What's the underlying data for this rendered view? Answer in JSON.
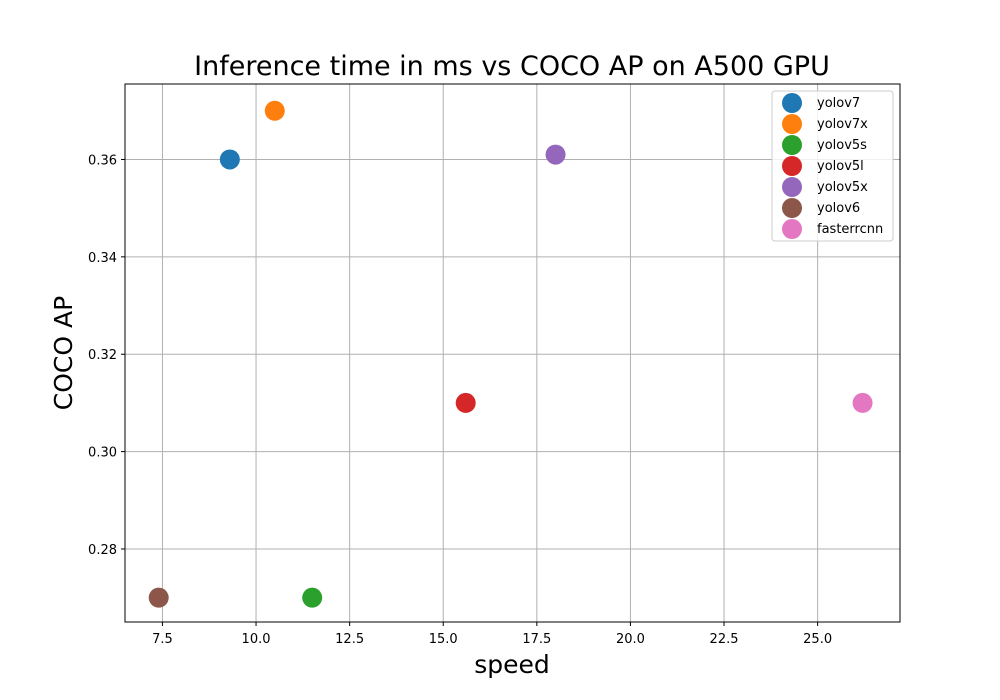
{
  "chart_data": {
    "type": "scatter",
    "title": "Inference time in ms vs COCO AP on A500 GPU",
    "xlabel": "speed",
    "ylabel": "COCO AP",
    "xlim": [
      6.5,
      27.2
    ],
    "ylim": [
      0.265,
      0.3755
    ],
    "xticks": [
      7.5,
      10.0,
      12.5,
      15.0,
      17.5,
      20.0,
      22.5,
      25.0
    ],
    "xtick_labels": [
      "7.5",
      "10.0",
      "12.5",
      "15.0",
      "17.5",
      "20.0",
      "22.5",
      "25.0"
    ],
    "yticks": [
      0.28,
      0.3,
      0.32,
      0.34,
      0.36
    ],
    "ytick_labels": [
      "0.28",
      "0.30",
      "0.32",
      "0.34",
      "0.36"
    ],
    "grid": true,
    "legend_position": "top-right",
    "series": [
      {
        "name": "yolov7",
        "color": "#1f77b4",
        "x": 9.3,
        "y": 0.36
      },
      {
        "name": "yolov7x",
        "color": "#ff7f0e",
        "x": 10.5,
        "y": 0.37
      },
      {
        "name": "yolov5s",
        "color": "#2ca02c",
        "x": 11.5,
        "y": 0.27
      },
      {
        "name": "yolov5l",
        "color": "#d62728",
        "x": 15.6,
        "y": 0.31
      },
      {
        "name": "yolov5x",
        "color": "#9467bd",
        "x": 18.0,
        "y": 0.361
      },
      {
        "name": "yolov6",
        "color": "#8c564b",
        "x": 7.4,
        "y": 0.27
      },
      {
        "name": "fasterrcnn",
        "color": "#e377c2",
        "x": 26.2,
        "y": 0.31
      }
    ]
  }
}
